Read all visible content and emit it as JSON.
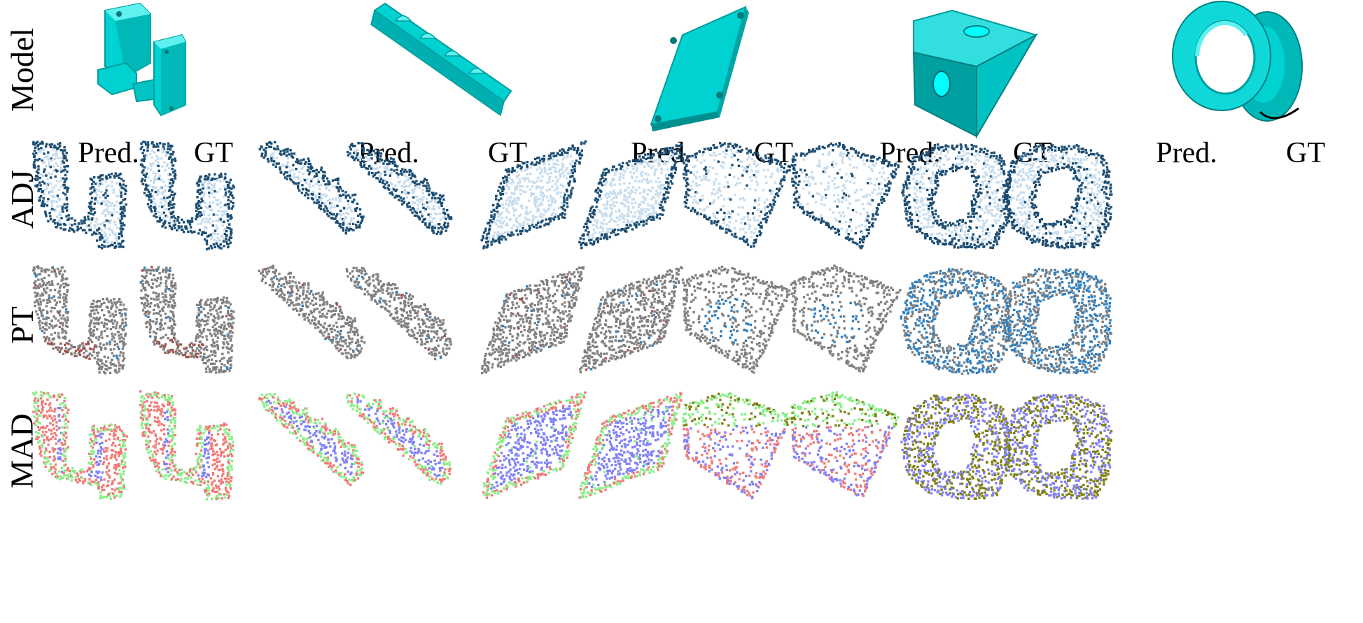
{
  "row_labels": {
    "model": "Model",
    "adj": "ADJ",
    "pt": "PT",
    "mad": "MAD"
  },
  "column_headers": {
    "pred": "Pred.",
    "gt": "GT"
  },
  "columns": [
    {
      "shape": "bracket-pair"
    },
    {
      "shape": "toothed-rail"
    },
    {
      "shape": "mounting-plate"
    },
    {
      "shape": "wedge-block"
    },
    {
      "shape": "flanged-ring"
    }
  ],
  "rows": [
    "adj",
    "pt",
    "mad"
  ],
  "colors": {
    "model_cyan": "#00d2d2",
    "model_cyan_dark": "#009c9c",
    "model_cyan_light": "#5ff0f0",
    "adj_face": "#c6dcee",
    "adj_edge": "#1b4d72",
    "pt_gray": "#808080",
    "pt_blue": "#2f7fbf",
    "pt_red": "#a0524c",
    "mad_blue": "#8080f8",
    "mad_red": "#f07a78",
    "mad_green": "#86ee86",
    "mad_olive": "#7f7f10",
    "mad_brown": "#7a5230"
  }
}
